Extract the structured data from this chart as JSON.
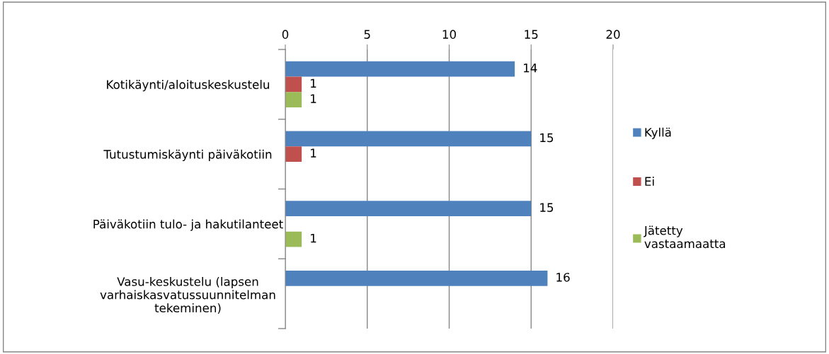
{
  "chart_data": {
    "type": "bar",
    "orientation": "horizontal",
    "categories": [
      "Kotikäynti/aloituskeskustelu",
      "Tutustumiskäynti päiväkotiin",
      "Päiväkotiin tulo- ja hakutilanteet",
      "Vasu-keskustelu (lapsen\nvarhaiskasvatussuunnitelman\ntekeminen)"
    ],
    "series": [
      {
        "name": "Kyllä",
        "color": "#4f81bd",
        "values": [
          14,
          15,
          15,
          16
        ]
      },
      {
        "name": "Ei",
        "color": "#c0504d",
        "values": [
          1,
          1,
          null,
          null
        ]
      },
      {
        "name": "Jätetty\nvastaamaatta",
        "color": "#9bbb59",
        "values": [
          1,
          null,
          1,
          null
        ]
      }
    ],
    "xlim": [
      0,
      20
    ],
    "xticks": [
      0,
      5,
      10,
      15,
      20
    ],
    "grid": "x",
    "legend": "right",
    "data_labels": true
  }
}
